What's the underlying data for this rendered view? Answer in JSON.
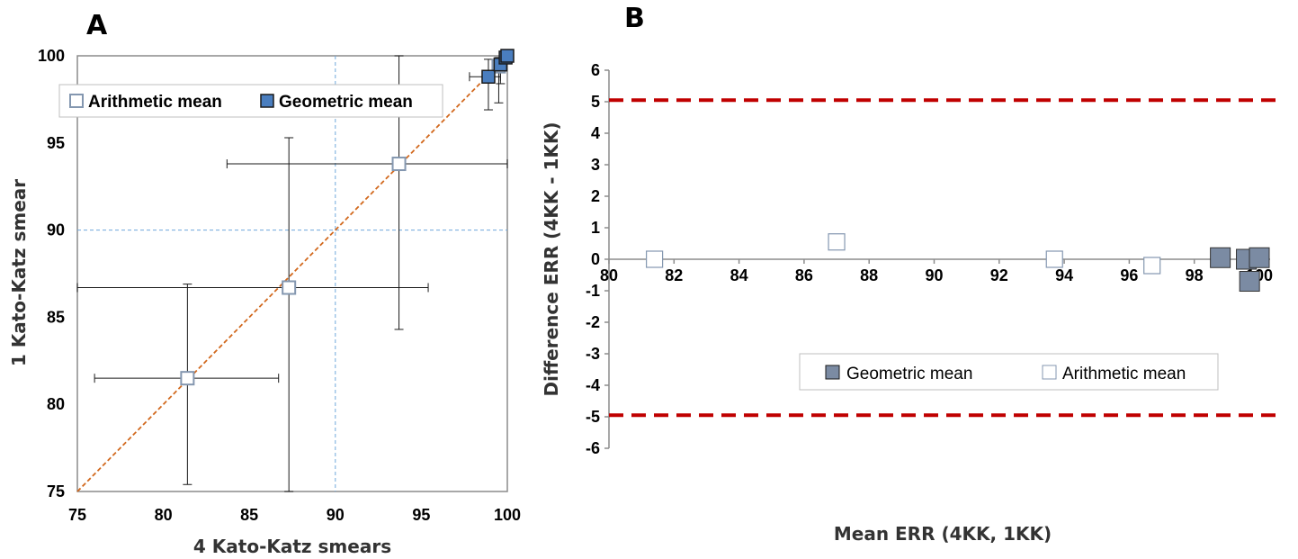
{
  "panels": {
    "a_letter": "A",
    "b_letter": "B"
  },
  "colors": {
    "arithmetic_stroke": "#8497b0",
    "geometric_fill": "#4a7ebf",
    "geometric_fill_b": "#7b8ba3",
    "identity_line": "#d2691e",
    "ref_line": "#6fa8dc",
    "limit_line": "#c00000"
  },
  "chart_data": [
    {
      "panel": "A",
      "type": "scatter",
      "xlabel": "4 Kato-Katz smears",
      "ylabel": "1 Kato-Katz smear",
      "xlim": [
        75,
        100
      ],
      "ylim": [
        75,
        100
      ],
      "xticks": [
        "75",
        "80",
        "85",
        "90",
        "95",
        "100"
      ],
      "yticks": [
        "75",
        "80",
        "85",
        "90",
        "95",
        "100"
      ],
      "grid": false,
      "legend_position": "top",
      "reference_lines": {
        "x": 90,
        "y": 90,
        "identity": true
      },
      "series": [
        {
          "name": "Arithmetic mean",
          "marker": "open-square",
          "points": [
            {
              "x": 81.4,
              "y": 81.5,
              "xerr": [
                76.0,
                86.7
              ],
              "yerr": [
                75.4,
                86.9
              ]
            },
            {
              "x": 87.3,
              "y": 86.7,
              "xerr": [
                75.0,
                95.4
              ],
              "yerr": [
                75.0,
                95.3
              ]
            },
            {
              "x": 93.7,
              "y": 93.8,
              "xerr": [
                83.7,
                100.0
              ],
              "yerr": [
                84.3,
                100.0
              ]
            },
            {
              "x": 99.5,
              "y": 99.4,
              "xerr": [
                99.2,
                99.8
              ],
              "yerr": [
                97.3,
                99.9
              ]
            }
          ]
        },
        {
          "name": "Geometric mean",
          "marker": "filled-square",
          "points": [
            {
              "x": 98.9,
              "y": 98.8,
              "xerr": [
                97.8,
                99.6
              ],
              "yerr": [
                96.9,
                99.8
              ]
            },
            {
              "x": 99.6,
              "y": 99.5,
              "xerr": [
                99.3,
                99.9
              ],
              "yerr": [
                98.4,
                99.9
              ]
            },
            {
              "x": 99.9,
              "y": 99.9,
              "xerr": [
                99.8,
                100.0
              ],
              "yerr": [
                99.6,
                100.0
              ]
            },
            {
              "x": 100.0,
              "y": 100.0,
              "xerr": [
                100.0,
                100.0
              ],
              "yerr": [
                100.0,
                100.0
              ]
            }
          ]
        }
      ]
    },
    {
      "panel": "B",
      "type": "scatter",
      "xlabel": "Mean ERR (4KK, 1KK)",
      "ylabel": "Difference ERR  (4KK - 1KK)",
      "xlim": [
        80,
        100
      ],
      "ylim": [
        -6,
        6
      ],
      "xticks": [
        "80",
        "82",
        "84",
        "86",
        "88",
        "90",
        "92",
        "94",
        "96",
        "98",
        "100"
      ],
      "yticks": [
        "6",
        "5",
        "4",
        "3",
        "2",
        "1",
        "0",
        "-1",
        "-2",
        "-3",
        "-4",
        "-5",
        "-6"
      ],
      "grid": false,
      "legend_position": "bottom-right",
      "limits_of_agreement": [
        5.05,
        -4.95
      ],
      "series": [
        {
          "name": "Geometric mean",
          "marker": "filled-square",
          "points": [
            {
              "x": 98.8,
              "y": 0.05
            },
            {
              "x": 99.6,
              "y": 0.0
            },
            {
              "x": 100.0,
              "y": 0.05
            },
            {
              "x": 99.7,
              "y": -0.7
            }
          ]
        },
        {
          "name": "Arithmetic mean",
          "marker": "open-square",
          "points": [
            {
              "x": 81.4,
              "y": 0.0
            },
            {
              "x": 87.0,
              "y": 0.55
            },
            {
              "x": 93.7,
              "y": 0.0
            },
            {
              "x": 96.7,
              "y": -0.2
            }
          ]
        }
      ]
    }
  ]
}
